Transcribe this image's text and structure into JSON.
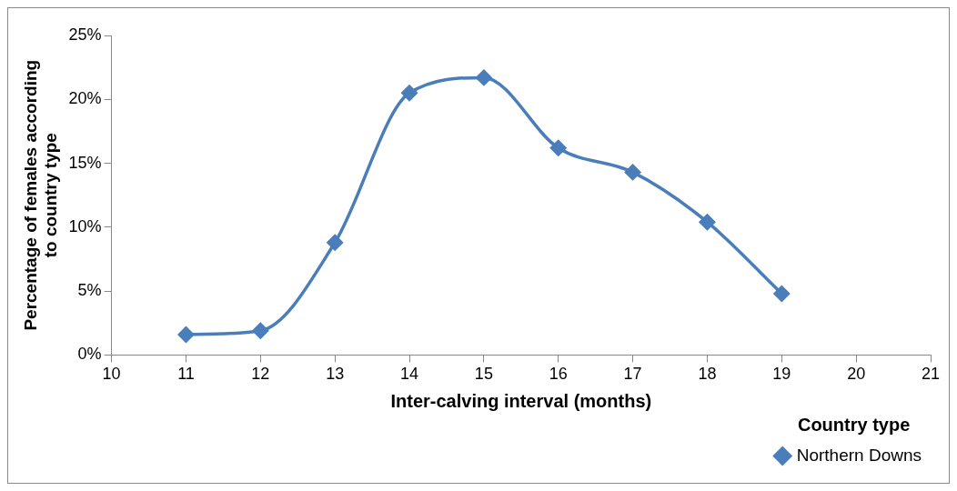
{
  "chart_data": {
    "type": "line",
    "xlabel": "Inter-calving interval (months)",
    "ylabel": "Percentage of females according to country type",
    "legend_title": "Country type",
    "x": [
      11,
      12,
      13,
      14,
      15,
      16,
      17,
      18,
      19
    ],
    "series": [
      {
        "name": "Northern Downs",
        "color": "#4a7ebb",
        "values": [
          1.6,
          1.9,
          8.8,
          20.5,
          21.7,
          16.2,
          14.3,
          10.4,
          4.8
        ]
      }
    ],
    "xlim": [
      10,
      21
    ],
    "xticks": [
      10,
      11,
      12,
      13,
      14,
      15,
      16,
      17,
      18,
      19,
      20,
      21
    ],
    "ylim": [
      0,
      25
    ],
    "yticks": [
      {
        "value": 0,
        "label": "0%"
      },
      {
        "value": 5,
        "label": "5%"
      },
      {
        "value": 10,
        "label": "10%"
      },
      {
        "value": 15,
        "label": "15%"
      },
      {
        "value": 20,
        "label": "20%"
      },
      {
        "value": 25,
        "label": "25%"
      }
    ],
    "grid": false,
    "legend": "bottom right",
    "marker": "diamond",
    "line_style": "solid"
  }
}
